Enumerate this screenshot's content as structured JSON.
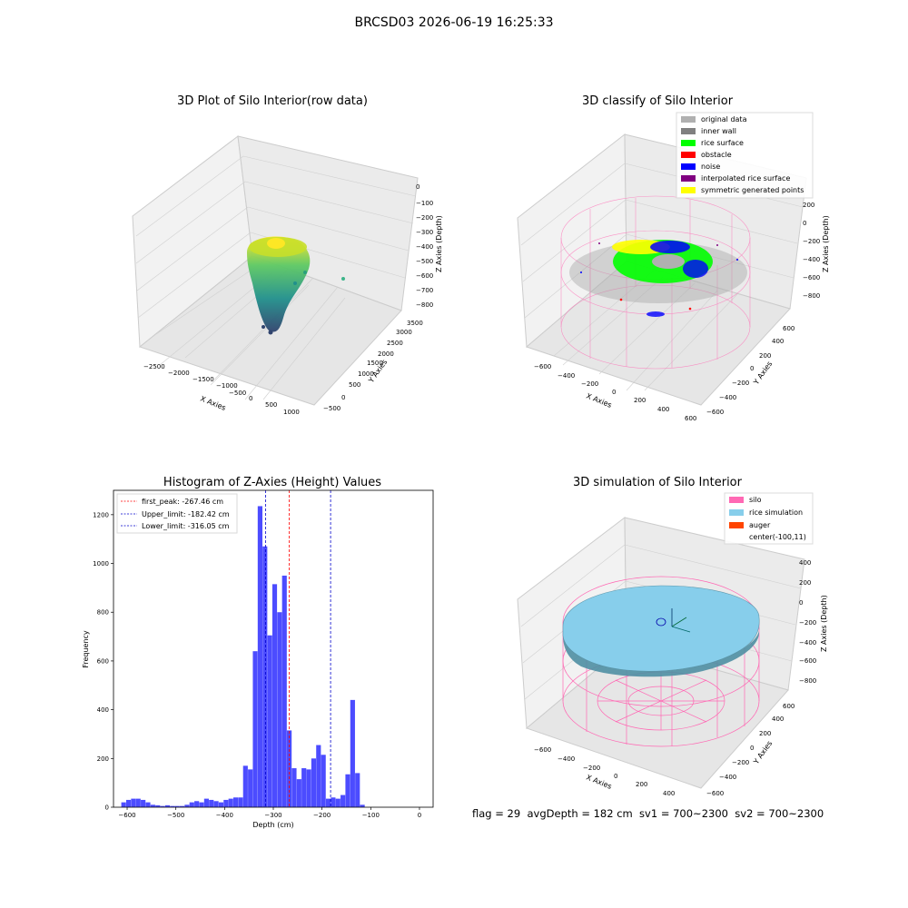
{
  "figure": {
    "suptitle": "BRCSD03 2026-06-19 16:25:33",
    "footer": "flag = 29  avgDepth = 182 cm  sv1 = 700~2300  sv2 = 700~2300"
  },
  "colors": {
    "hist_bar": "#4c4cff",
    "first_peak": "#ff0000",
    "limit_line": "#0000cc",
    "silo_wire": "#ff69b4",
    "rice_sim": "#87ceeb",
    "auger": "#ff4500",
    "original": "#b0b0b0",
    "inner_wall": "#808080",
    "rice_surface": "#00ff00",
    "obstacle": "#ff0000",
    "noise": "#0000ff",
    "interp": "#800080",
    "symmetric": "#ffff00"
  },
  "chart_data": [
    {
      "type": "scatter",
      "projection": "3d",
      "title": "3D Plot of Silo Interior(row data)",
      "xlabel": "X Axies",
      "ylabel": "Y Axies",
      "zlabel": "Z Axies (Depth)",
      "xticks": [
        "−2500",
        "−2000",
        "−1500",
        "−1000",
        "−500",
        "0",
        "500",
        "1000"
      ],
      "yticks": [
        "−500",
        "0",
        "500",
        "1000",
        "1500",
        "2000",
        "2500",
        "3000",
        "3500"
      ],
      "zticks": [
        "0",
        "−100",
        "−200",
        "−300",
        "−400",
        "−500",
        "−600",
        "−700",
        "−800"
      ],
      "colormap": "viridis"
    },
    {
      "type": "scatter",
      "projection": "3d",
      "title": "3D classify of Silo Interior",
      "xlabel": "X Axies",
      "ylabel": "Y Axies",
      "zlabel": "Z Axies (Depth)",
      "xticks": [
        "−600",
        "−400",
        "−200",
        "0",
        "200",
        "400",
        "600"
      ],
      "yticks": [
        "−600",
        "−400",
        "−200",
        "0",
        "200",
        "400",
        "600"
      ],
      "zticks": [
        "200",
        "0",
        "−200",
        "−400",
        "−600",
        "−800"
      ],
      "legend_position": "top-right",
      "legend": [
        {
          "label": "original data",
          "color": "#b0b0b0"
        },
        {
          "label": "inner wall",
          "color": "#808080"
        },
        {
          "label": "rice surface",
          "color": "#00ff00"
        },
        {
          "label": "obstacle",
          "color": "#ff0000"
        },
        {
          "label": "noise",
          "color": "#0000ff"
        },
        {
          "label": "interpolated rice surface",
          "color": "#800080"
        },
        {
          "label": "symmetric generated points",
          "color": "#ffff00"
        }
      ]
    },
    {
      "type": "bar",
      "title": "Histogram of Z-Axies (Height) Values",
      "xlabel": "Depth (cm)",
      "ylabel": "Frequency",
      "xlim": [
        -628,
        28
      ],
      "ylim": [
        0,
        1300
      ],
      "xticks": [
        -600,
        -500,
        -400,
        -300,
        -200,
        -100,
        0
      ],
      "yticks": [
        0,
        200,
        400,
        600,
        800,
        1000,
        1200
      ],
      "bin_start": -612,
      "bin_width": 10,
      "values": [
        20,
        30,
        35,
        35,
        30,
        20,
        10,
        8,
        5,
        8,
        5,
        5,
        5,
        10,
        20,
        25,
        20,
        35,
        30,
        25,
        20,
        30,
        35,
        40,
        40,
        170,
        155,
        640,
        1235,
        1070,
        705,
        915,
        800,
        950,
        315,
        160,
        115,
        160,
        155,
        200,
        255,
        215,
        35,
        40,
        35,
        50,
        135,
        440,
        140,
        10
      ],
      "reference_lines": [
        {
          "label": "first_peak: -267.46 cm",
          "x": -267.46,
          "color": "#ff0000"
        },
        {
          "label": "Upper_limit: -182.42 cm",
          "x": -182.42,
          "color": "#0000cc"
        },
        {
          "label": "Lower_limit: -316.05 cm",
          "x": -316.05,
          "color": "#0000cc"
        }
      ],
      "legend_position": "top-left"
    },
    {
      "type": "scatter",
      "projection": "3d",
      "title": "3D simulation of Silo Interior",
      "xlabel": "X Axies",
      "ylabel": "Y Axies",
      "zlabel": "Z Axies (Depth)",
      "xticks": [
        "−600",
        "−400",
        "−200",
        "0",
        "200",
        "400"
      ],
      "yticks": [
        "−600",
        "−400",
        "−200",
        "0",
        "200",
        "400",
        "600"
      ],
      "zticks": [
        "400",
        "200",
        "0",
        "−200",
        "−400",
        "−600",
        "−800"
      ],
      "legend_position": "top-right",
      "legend": [
        {
          "label": "silo",
          "color": "#ff69b4"
        },
        {
          "label": "rice simulation",
          "color": "#87ceeb"
        },
        {
          "label": "auger",
          "color": "#ff4500"
        },
        {
          "label": "center(-100,11)",
          "color": ""
        }
      ]
    }
  ]
}
